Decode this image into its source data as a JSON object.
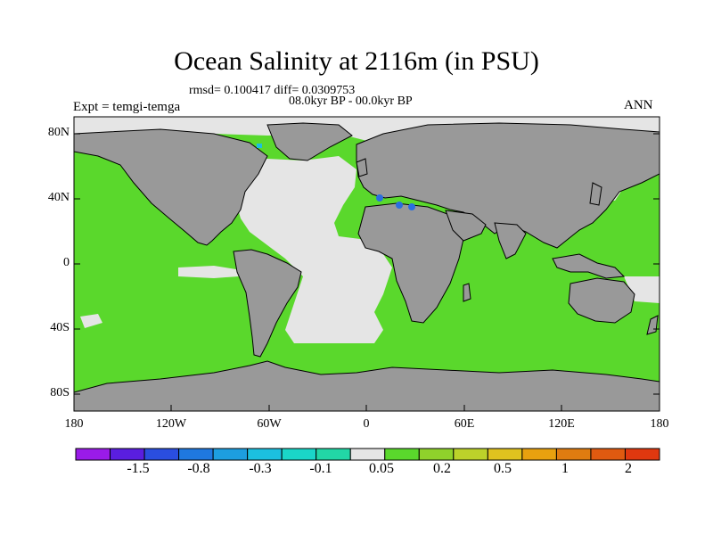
{
  "title": "Ocean Salinity at 2116m (in PSU)",
  "subtitle_stats": "rmsd= 0.100417 diff= 0.0309753",
  "subtitle_period": "08.0kyr BP - 00.0kyr BP",
  "left_label": "Expt = temgi-temga",
  "right_label": "ANN",
  "lat_ticks": [
    "80N",
    "40N",
    "0",
    "40S",
    "80S"
  ],
  "lon_ticks": [
    "180",
    "120W",
    "60W",
    "0",
    "60E",
    "120E",
    "180"
  ],
  "colorbar": {
    "labels": [
      "-1.5",
      "-0.8",
      "-0.3",
      "-0.1",
      "0.05",
      "0.2",
      "0.5",
      "1",
      "2"
    ],
    "colors": [
      "#9a1be8",
      "#5a1ee0",
      "#2a4ee0",
      "#1f78e0",
      "#1d9ee0",
      "#1cc0e0",
      "#1ad6c8",
      "#22d7a6",
      "#e5e5e5",
      "#5ad82c",
      "#8fd22b",
      "#bcd22a",
      "#e0c21f",
      "#e8a10f",
      "#e07c10",
      "#e05a10",
      "#e0380f"
    ]
  },
  "colors": {
    "land": "#999999",
    "near_zero": "#e5e5e5",
    "positive_small": "#5ad82c",
    "negative": "#2a6ee0"
  }
}
